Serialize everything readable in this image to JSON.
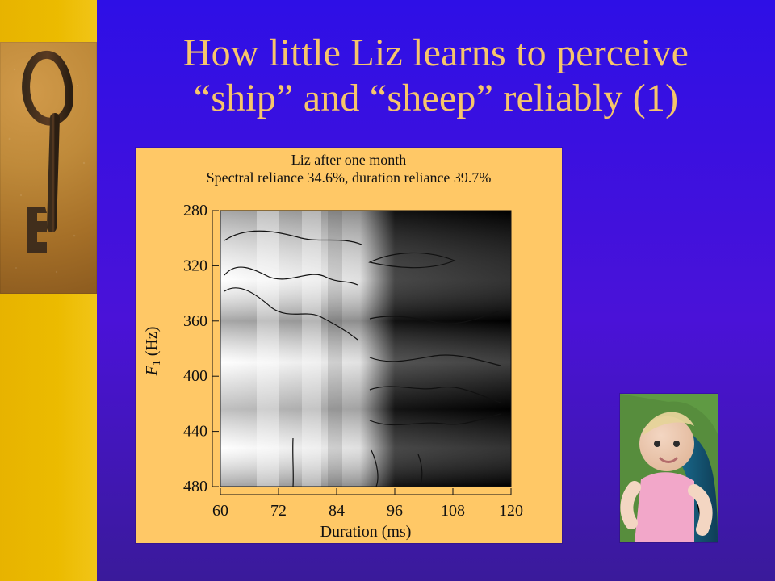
{
  "slide": {
    "title_line1": "How little Liz learns to perceive",
    "title_line2": "“ship” and “sheep” reliably (1)",
    "accent_colors": {
      "title": "#f6c56b",
      "figure_bg": "#ffc866",
      "left_strip": "#f0c000",
      "slide_bg": "#2e0fe6"
    }
  },
  "figure": {
    "caption_line1": "Liz after one month",
    "caption_line2": "Spectral reliance 34.6%, duration reliance 39.7%"
  },
  "chart_data": {
    "type": "heatmap",
    "xlabel": "Duration (ms)",
    "ylabel_base": "F",
    "ylabel_sub": "1",
    "ylabel_suffix": " (Hz)",
    "x_ticks": [
      "60",
      "72",
      "84",
      "96",
      "108",
      "120"
    ],
    "y_ticks": [
      "280",
      "320",
      "360",
      "400",
      "440",
      "480"
    ],
    "xlim": [
      60,
      120
    ],
    "ylim": [
      280,
      480
    ],
    "notes": "Grayscale heatmap with contour lines; lighter regions near shorter durations and lower F1."
  },
  "photos": {
    "left": "key-photo",
    "bottom_right": "baby-photo"
  }
}
